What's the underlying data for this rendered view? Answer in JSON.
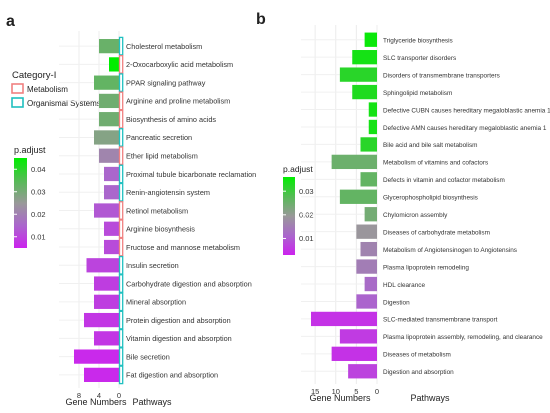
{
  "chart_data": [
    {
      "type": "bar",
      "orientation": "horizontal-reversed",
      "panel_label": "a",
      "legend_title_category": "Category-I",
      "categories_legend": [
        {
          "name": "Metabolism",
          "color": "#f08080"
        },
        {
          "name": "Organismal Systems",
          "color": "#20c0c0"
        }
      ],
      "colorbar": {
        "title": "p.adjust",
        "ticks": [
          0.04,
          0.03,
          0.02,
          0.01
        ],
        "range": [
          0.005,
          0.045
        ],
        "colors_low_to_high": [
          "#cc22ee",
          "#aa66cc",
          "#999999",
          "#55bb55",
          "#00ee00"
        ]
      },
      "xlabel": "Gene Numbers",
      "ylabel": "Pathways",
      "xticks": [
        8,
        4,
        0
      ],
      "xlim": [
        0,
        10
      ],
      "grid": true,
      "pathways": [
        {
          "name": "Cholesterol metabolism",
          "value": 4,
          "p_adjust": 0.032,
          "category": "Organismal Systems"
        },
        {
          "name": "2-Oxocarboxylic acid metabolism",
          "value": 2,
          "p_adjust": 0.045,
          "category": "Metabolism"
        },
        {
          "name": "PPAR signaling pathway",
          "value": 5,
          "p_adjust": 0.033,
          "category": "Organismal Systems"
        },
        {
          "name": "Arginine and proline metabolism",
          "value": 4,
          "p_adjust": 0.031,
          "category": "Metabolism"
        },
        {
          "name": "Biosynthesis of amino acids",
          "value": 4,
          "p_adjust": 0.031,
          "category": "Metabolism"
        },
        {
          "name": "Pancreatic secretion",
          "value": 5,
          "p_adjust": 0.028,
          "category": "Organismal Systems"
        },
        {
          "name": "Ether lipid metabolism",
          "value": 4,
          "p_adjust": 0.021,
          "category": "Metabolism"
        },
        {
          "name": "Proximal tubule bicarbonate reclamation",
          "value": 3,
          "p_adjust": 0.015,
          "category": "Organismal Systems"
        },
        {
          "name": "Renin-angiotensin system",
          "value": 3,
          "p_adjust": 0.015,
          "category": "Organismal Systems"
        },
        {
          "name": "Retinol metabolism",
          "value": 5,
          "p_adjust": 0.013,
          "category": "Metabolism"
        },
        {
          "name": "Arginine biosynthesis",
          "value": 3,
          "p_adjust": 0.011,
          "category": "Metabolism"
        },
        {
          "name": "Fructose and mannose metabolism",
          "value": 3,
          "p_adjust": 0.011,
          "category": "Metabolism"
        },
        {
          "name": "Insulin secretion",
          "value": 6.5,
          "p_adjust": 0.01,
          "category": "Organismal Systems"
        },
        {
          "name": "Carbohydrate digestion and absorption",
          "value": 5,
          "p_adjust": 0.009,
          "category": "Organismal Systems"
        },
        {
          "name": "Mineral absorption",
          "value": 5,
          "p_adjust": 0.009,
          "category": "Organismal Systems"
        },
        {
          "name": "Protein digestion and absorption",
          "value": 7,
          "p_adjust": 0.008,
          "category": "Organismal Systems"
        },
        {
          "name": "Vitamin digestion and absorption",
          "value": 5,
          "p_adjust": 0.008,
          "category": "Organismal Systems"
        },
        {
          "name": "Bile secretion",
          "value": 9,
          "p_adjust": 0.006,
          "category": "Organismal Systems"
        },
        {
          "name": "Fat digestion and absorption",
          "value": 7,
          "p_adjust": 0.006,
          "category": "Organismal Systems"
        }
      ]
    },
    {
      "type": "bar",
      "orientation": "horizontal-reversed",
      "panel_label": "b",
      "colorbar": {
        "title": "p.adjust",
        "ticks": [
          0.03,
          0.02,
          0.01
        ],
        "range": [
          0.003,
          0.036
        ],
        "colors_low_to_high": [
          "#cc22ee",
          "#aa66cc",
          "#999999",
          "#55bb55",
          "#00ee00"
        ]
      },
      "xlabel": "Gene Numbers",
      "ylabel": "Pathways",
      "xticks": [
        15,
        10,
        5,
        0
      ],
      "xlim": [
        0,
        16
      ],
      "grid": true,
      "pathways": [
        {
          "name": "Triglyceride biosynthesis",
          "value": 3,
          "p_adjust": 0.035
        },
        {
          "name": "SLC transporter disorders",
          "value": 6,
          "p_adjust": 0.034
        },
        {
          "name": "Disorders of transmembrane transporters",
          "value": 9,
          "p_adjust": 0.032
        },
        {
          "name": "Sphingolipid metabolism",
          "value": 6,
          "p_adjust": 0.033
        },
        {
          "name": "Defective CUBN causes hereditary megaloblastic anemia 1",
          "value": 2,
          "p_adjust": 0.034
        },
        {
          "name": "Defective AMN causes hereditary megaloblastic anemia 1",
          "value": 2,
          "p_adjust": 0.034
        },
        {
          "name": "Bile acid and bile salt metabolism",
          "value": 4,
          "p_adjust": 0.032
        },
        {
          "name": "Metabolism of vitamins and cofactors",
          "value": 11,
          "p_adjust": 0.025
        },
        {
          "name": "Defects in vitamin and cofactor metabolism",
          "value": 4,
          "p_adjust": 0.026
        },
        {
          "name": "Glycerophospholipid biosynthesis",
          "value": 9,
          "p_adjust": 0.026
        },
        {
          "name": "Chylomicron assembly",
          "value": 3,
          "p_adjust": 0.024
        },
        {
          "name": "Diseases of carbohydrate metabolism",
          "value": 5,
          "p_adjust": 0.019
        },
        {
          "name": "Metabolism of Angiotensinogen to Angiotensins",
          "value": 4,
          "p_adjust": 0.016
        },
        {
          "name": "Plasma lipoprotein remodeling",
          "value": 5,
          "p_adjust": 0.015
        },
        {
          "name": "HDL clearance",
          "value": 3,
          "p_adjust": 0.012
        },
        {
          "name": "Digestion",
          "value": 5,
          "p_adjust": 0.011
        },
        {
          "name": "SLC-mediated transmembrane transport",
          "value": 16,
          "p_adjust": 0.005
        },
        {
          "name": "Plasma lipoprotein assembly, remodeling, and clearance",
          "value": 9,
          "p_adjust": 0.006
        },
        {
          "name": "Diseases of metabolism",
          "value": 11,
          "p_adjust": 0.005
        },
        {
          "name": "Digestion and absorption",
          "value": 7,
          "p_adjust": 0.007
        }
      ]
    }
  ]
}
